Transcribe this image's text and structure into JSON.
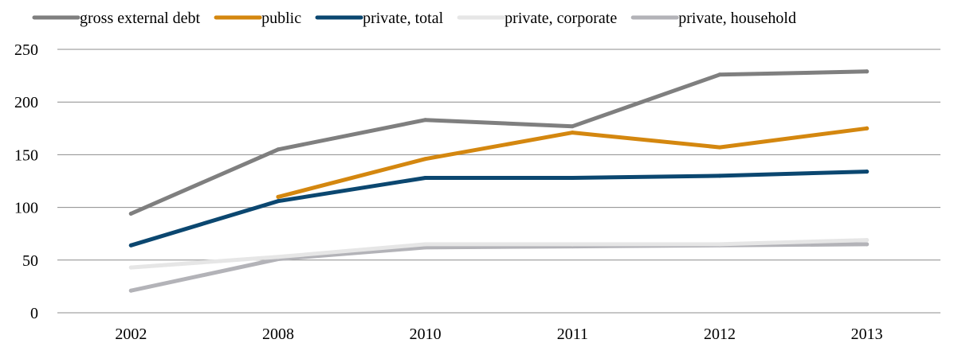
{
  "chart_data": {
    "type": "line",
    "title": "",
    "xlabel": "",
    "ylabel": "",
    "categories": [
      "2002",
      "2008",
      "2010",
      "2011",
      "2012",
      "2013"
    ],
    "ylim": [
      0,
      250
    ],
    "yticks": [
      0,
      50,
      100,
      150,
      200,
      250
    ],
    "grid": "horizontal",
    "legend": "top",
    "series": [
      {
        "name": "gross external debt",
        "color": "#7f7f7f",
        "values": [
          94,
          155,
          183,
          177,
          226,
          229
        ]
      },
      {
        "name": "public",
        "color": "#d4870f",
        "values": [
          null,
          110,
          146,
          171,
          157,
          175
        ]
      },
      {
        "name": "private, total",
        "color": "#0b4770",
        "values": [
          64,
          106,
          128,
          128,
          130,
          134
        ]
      },
      {
        "name": "private, corporate",
        "color": "#e6e6e6",
        "values": [
          43,
          53,
          65,
          65,
          65,
          69
        ]
      },
      {
        "name": "private, household",
        "color": "#b3b3b8",
        "values": [
          21,
          51,
          62,
          63,
          64,
          65
        ]
      }
    ]
  }
}
